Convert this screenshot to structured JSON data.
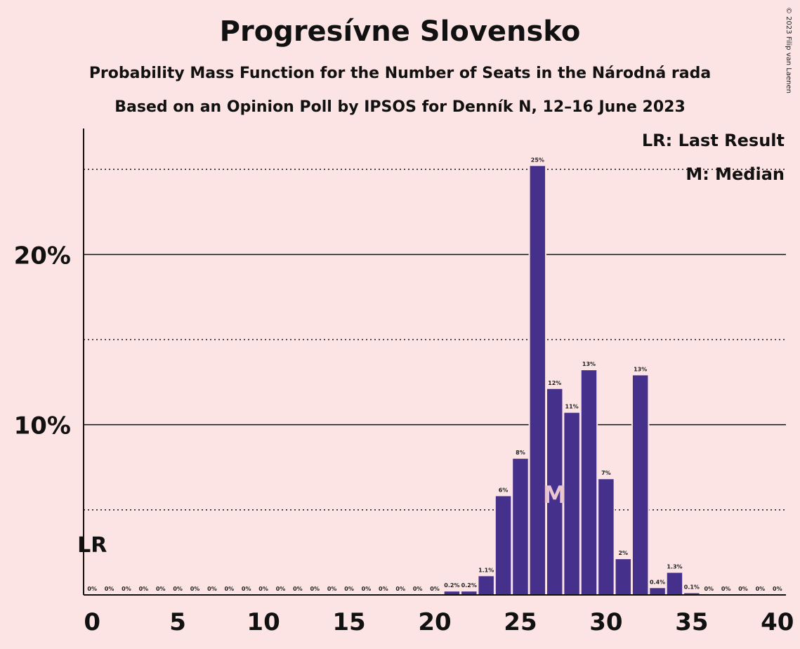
{
  "title": "Progresívne Slovensko",
  "subtitle1": "Probability Mass Function for the Number of Seats in the Národná rada",
  "subtitle2": "Based on an Opinion Poll by IPSOS for Denník N, 12–16 June 2023",
  "legend": {
    "last_result": "LR: Last Result",
    "median": "M: Median"
  },
  "copyright": "© 2023 Filip van Laenen",
  "colors": {
    "background": "#fde4e4",
    "bar": "#45318c",
    "median_marker": "#e8c5d0",
    "text": "#111111"
  },
  "chart_data": {
    "type": "bar",
    "x": [
      0,
      1,
      2,
      3,
      4,
      5,
      6,
      7,
      8,
      9,
      10,
      11,
      12,
      13,
      14,
      15,
      16,
      17,
      18,
      19,
      20,
      21,
      22,
      23,
      24,
      25,
      26,
      27,
      28,
      29,
      30,
      31,
      32,
      33,
      34,
      35,
      36,
      37,
      38,
      39,
      40
    ],
    "values": [
      0,
      0,
      0,
      0,
      0,
      0,
      0,
      0,
      0,
      0,
      0,
      0,
      0,
      0,
      0,
      0,
      0,
      0,
      0,
      0,
      0,
      0.2,
      0.2,
      1.1,
      5.8,
      8,
      25.2,
      12.1,
      10.7,
      13.2,
      6.8,
      2.1,
      12.9,
      0.4,
      1.3,
      0.1,
      0,
      0,
      0,
      0,
      0
    ],
    "labels": [
      "0%",
      "0%",
      "0%",
      "0%",
      "0%",
      "0%",
      "0%",
      "0%",
      "0%",
      "0%",
      "0%",
      "0%",
      "0%",
      "0%",
      "0%",
      "0%",
      "0%",
      "0%",
      "0%",
      "0%",
      "0%",
      "0.2%",
      "0.2%",
      "1.1%",
      "6%",
      "8%",
      "25%",
      "12%",
      "11%",
      "13%",
      "7%",
      "2%",
      "13%",
      "0.4%",
      "1.3%",
      "0.1%",
      "0%",
      "0%",
      "0%",
      "0%",
      "0%"
    ],
    "xticks": [
      0,
      5,
      10,
      15,
      20,
      25,
      30,
      35,
      40
    ],
    "yticks": [
      10,
      20
    ],
    "ytick_labels": [
      "10%",
      "20%"
    ],
    "minor_gridlines": [
      5,
      15,
      25
    ],
    "ylim": [
      0,
      27.4
    ],
    "xlim": [
      -0.5,
      40.5
    ],
    "last_result": 0,
    "last_result_label": "LR",
    "median": 27,
    "median_label": "M"
  }
}
